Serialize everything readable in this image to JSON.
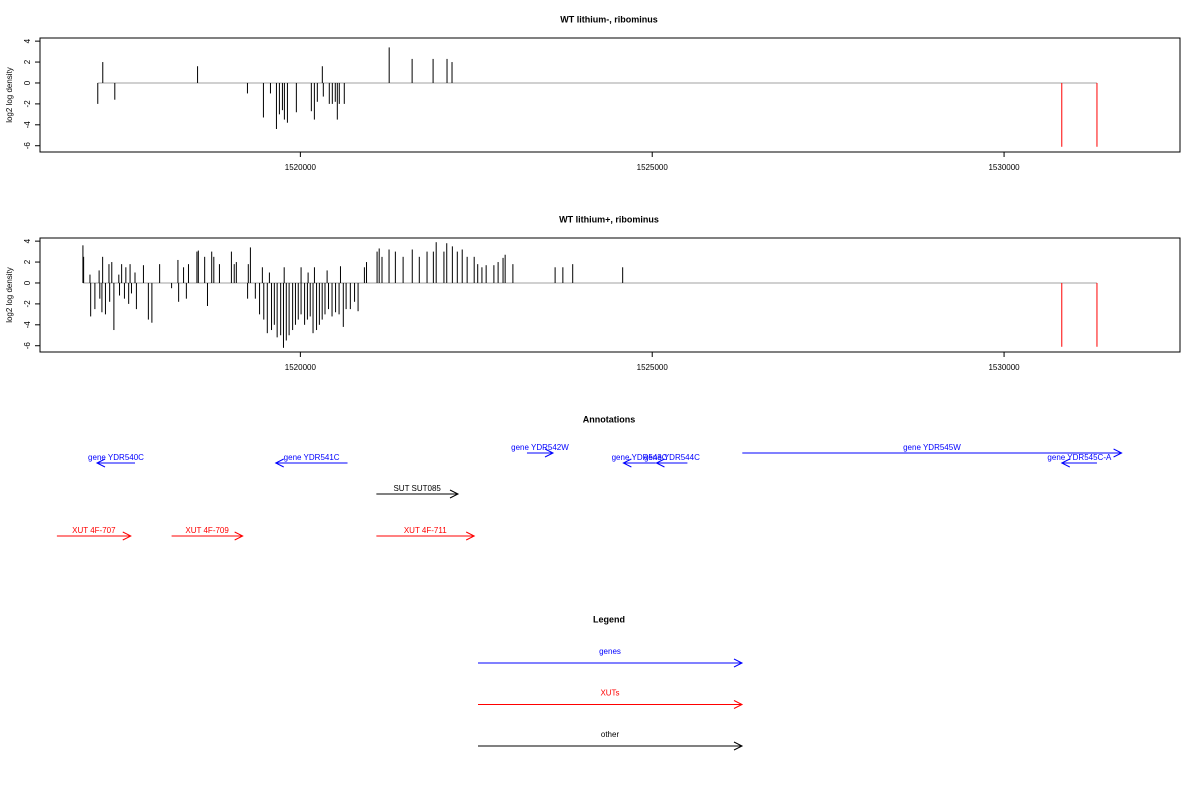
{
  "chart_data": [
    {
      "type": "spike",
      "title": "WT lithium-, ribominus",
      "ylabel": "log2 log density",
      "xlim": [
        1516300,
        1532500
      ],
      "xticks": [
        1520000,
        1525000,
        1530000
      ],
      "ylim": [
        -6.6,
        4.3
      ],
      "yticks": [
        -6,
        -4,
        -2,
        0,
        2,
        4
      ],
      "baseline_color": "#a0a0a0",
      "series": [
        {
          "color": "#000000",
          "x": [
            1517121,
            1517192,
            1517363,
            1518539,
            1519248,
            1519475,
            1519575,
            1519660,
            1519702,
            1519745,
            1519773,
            1519816,
            1519943,
            1520156,
            1520199,
            1520241,
            1520312,
            1520326,
            1520411,
            1520454,
            1520496,
            1520525,
            1520553,
            1520624,
            1521262,
            1521588,
            1521886,
            1522084,
            1522155
          ],
          "values": [
            -2.0,
            2.0,
            -1.6,
            1.6,
            -1.0,
            -3.3,
            -1.0,
            -4.4,
            -3.0,
            -2.6,
            -3.5,
            -3.8,
            -2.8,
            -2.7,
            -3.5,
            -1.8,
            1.6,
            -1.3,
            -2.0,
            -2.0,
            -1.8,
            -3.5,
            -2.0,
            -2.0,
            3.4,
            2.3,
            2.3,
            2.3,
            2.0
          ]
        },
        {
          "color": "#ff0000",
          "x": [
            1530820,
            1531320
          ],
          "values": [
            -6.1,
            -6.1
          ]
        }
      ]
    },
    {
      "type": "spike",
      "title": "WT lithium+, ribominus",
      "ylabel": "log2 log density",
      "xlim": [
        1516300,
        1532500
      ],
      "xticks": [
        1520000,
        1525000,
        1530000
      ],
      "ylim": [
        -6.6,
        4.3
      ],
      "yticks": [
        -6,
        -4,
        -2,
        0,
        2,
        4
      ],
      "baseline_color": "#a0a0a0",
      "series": [
        {
          "color": "#000000",
          "x": [
            1516910,
            1516920,
            1517010,
            1517140,
            1517190,
            1517280,
            1517320,
            1517420,
            1517460,
            1517520,
            1517580,
            1517650,
            1517770,
            1518000,
            1518260,
            1518340,
            1518410,
            1518530,
            1518550,
            1518640,
            1518740,
            1518770,
            1518850,
            1519020,
            1519060,
            1519090,
            1519260,
            1519290,
            1519460,
            1519560,
            1519770,
            1520010,
            1520110,
            1520200,
            1520380,
            1520570,
            1520910,
            1520940,
            1521090,
            1521120,
            1521160,
            1521260,
            1521350,
            1521460,
            1521590,
            1521690,
            1521800,
            1521890,
            1521930,
            1522040,
            1522080,
            1522160,
            1522230,
            1522300,
            1522370,
            1522470,
            1522520,
            1522580,
            1522640,
            1522750,
            1522810,
            1522880,
            1522910,
            1523020,
            1523620,
            1523730,
            1523870,
            1524580,
            1517020,
            1517080,
            1517150,
            1517180,
            1517230,
            1517290,
            1517350,
            1517430,
            1517500,
            1517560,
            1517600,
            1517670,
            1517840,
            1517890,
            1518170,
            1518270,
            1518380,
            1518680,
            1519250,
            1519360,
            1519420,
            1519480,
            1519530,
            1519590,
            1519630,
            1519670,
            1519720,
            1519760,
            1519800,
            1519840,
            1519890,
            1519930,
            1519970,
            1520010,
            1520060,
            1520100,
            1520140,
            1520180,
            1520230,
            1520270,
            1520310,
            1520350,
            1520400,
            1520450,
            1520500,
            1520550,
            1520610,
            1520650,
            1520710,
            1520770,
            1520820
          ],
          "values": [
            3.6,
            2.5,
            0.8,
            1.2,
            2.5,
            1.8,
            2.0,
            0.8,
            1.8,
            1.5,
            1.8,
            1.0,
            1.7,
            1.8,
            2.2,
            1.5,
            1.8,
            3.0,
            3.1,
            2.5,
            3.0,
            2.5,
            1.8,
            3.0,
            1.8,
            2.0,
            1.8,
            3.4,
            1.5,
            1.0,
            1.5,
            1.5,
            1.0,
            1.5,
            1.2,
            1.6,
            1.5,
            2.0,
            3.0,
            3.3,
            2.5,
            3.2,
            3.0,
            2.5,
            3.2,
            2.5,
            3.0,
            3.0,
            3.9,
            3.0,
            3.8,
            3.5,
            3.0,
            3.2,
            2.5,
            2.5,
            1.8,
            1.5,
            1.7,
            1.7,
            2.0,
            2.4,
            2.7,
            1.8,
            1.5,
            1.5,
            1.8,
            1.5,
            -3.2,
            -2.5,
            -1.5,
            -2.8,
            -3.0,
            -1.8,
            -4.5,
            -1.2,
            -1.5,
            -2.0,
            -1.0,
            -2.5,
            -3.5,
            -3.8,
            -0.5,
            -1.8,
            -1.5,
            -2.2,
            -1.5,
            -1.5,
            -3.0,
            -3.5,
            -4.8,
            -4.5,
            -4.0,
            -5.2,
            -5.0,
            -6.2,
            -5.5,
            -5.0,
            -4.5,
            -4.0,
            -3.5,
            -3.0,
            -4.0,
            -3.5,
            -3.2,
            -4.8,
            -4.5,
            -4.0,
            -3.5,
            -3.0,
            -2.5,
            -3.2,
            -2.8,
            -3.0,
            -4.2,
            -2.5,
            -2.5,
            -1.8,
            -2.7
          ]
        },
        {
          "color": "#ff0000",
          "x": [
            1530820,
            1531320
          ],
          "values": [
            -6.1,
            -6.1
          ]
        }
      ]
    }
  ],
  "annotations": {
    "title": "Annotations",
    "features": [
      {
        "label": "gene YDR540C",
        "start": 1517110,
        "end": 1517650,
        "strand": "-",
        "color": "#0000ff"
      },
      {
        "label": "gene YDR541C",
        "start": 1519650,
        "end": 1520670,
        "strand": "-",
        "color": "#0000ff"
      },
      {
        "label": "gene YDR542W",
        "start": 1523220,
        "end": 1523590,
        "strand": "+",
        "color": "#0000ff"
      },
      {
        "label": "gene YDR543C",
        "start": 1524590,
        "end": 1525050,
        "strand": "-",
        "color": "#0000ff"
      },
      {
        "label": "gene YDR544C",
        "start": 1525060,
        "end": 1525500,
        "strand": "-",
        "color": "#0000ff"
      },
      {
        "label": "gene YDR545W",
        "start": 1526280,
        "end": 1531670,
        "strand": "+",
        "color": "#0000ff"
      },
      {
        "label": "gene YDR545C-A",
        "start": 1530820,
        "end": 1531320,
        "strand": "-",
        "color": "#0000ff"
      },
      {
        "label": "SUT SUT085",
        "start": 1521080,
        "end": 1522240,
        "strand": "+",
        "color": "#000000"
      },
      {
        "label": "XUT 4F-707",
        "start": 1516540,
        "end": 1517590,
        "strand": "+",
        "color": "#ff0000"
      },
      {
        "label": "XUT 4F-709",
        "start": 1518170,
        "end": 1519180,
        "strand": "+",
        "color": "#ff0000"
      },
      {
        "label": "XUT 4F-711",
        "start": 1521080,
        "end": 1522470,
        "strand": "+",
        "color": "#ff0000"
      }
    ]
  },
  "legend": {
    "title": "Legend",
    "entries": [
      {
        "label": "genes",
        "color": "#0000ff"
      },
      {
        "label": "XUTs",
        "color": "#ff0000"
      },
      {
        "label": "other",
        "color": "#000000"
      }
    ]
  }
}
